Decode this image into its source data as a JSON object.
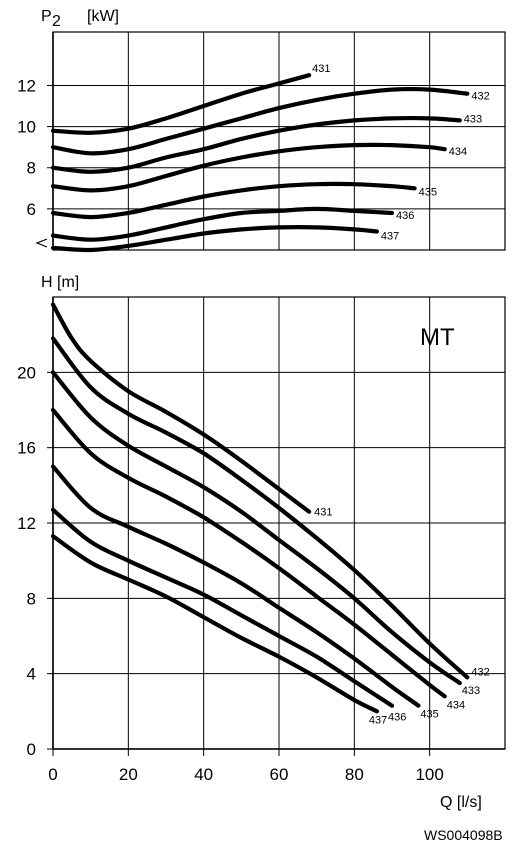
{
  "figure_code": "WS004098B",
  "x_axis": {
    "label": "Q [l/s]",
    "tick_labels": [
      "0",
      "20",
      "40",
      "60",
      "80",
      "100"
    ]
  },
  "chart_data": [
    {
      "type": "line",
      "title": "",
      "ylabel_prefix": "P",
      "ylabel_sub": "2",
      "ylabel_unit": "[kW]",
      "xlabel": "Q [l/s]",
      "xlim": [
        0,
        120
      ],
      "ylim": [
        4,
        14.6
      ],
      "y_tick_labels": [
        "6",
        "8",
        "10",
        "12"
      ],
      "grid": true,
      "series": [
        {
          "name": "431",
          "x": [
            0,
            10,
            20,
            30,
            40,
            50,
            60,
            68
          ],
          "y": [
            9.8,
            9.7,
            9.9,
            10.4,
            11.0,
            11.6,
            12.1,
            12.5
          ]
        },
        {
          "name": "432",
          "x": [
            0,
            10,
            20,
            30,
            40,
            50,
            60,
            70,
            80,
            90,
            100,
            110
          ],
          "y": [
            9.0,
            8.7,
            8.9,
            9.4,
            9.9,
            10.4,
            10.9,
            11.3,
            11.6,
            11.8,
            11.8,
            11.6
          ]
        },
        {
          "name": "433",
          "x": [
            0,
            10,
            20,
            30,
            40,
            50,
            60,
            70,
            80,
            90,
            100,
            108
          ],
          "y": [
            8.0,
            7.8,
            8.0,
            8.5,
            8.9,
            9.4,
            9.8,
            10.1,
            10.3,
            10.4,
            10.4,
            10.3
          ]
        },
        {
          "name": "434",
          "x": [
            0,
            10,
            20,
            30,
            40,
            50,
            60,
            70,
            80,
            90,
            100,
            104
          ],
          "y": [
            7.1,
            6.9,
            7.1,
            7.6,
            8.1,
            8.5,
            8.8,
            9.0,
            9.1,
            9.1,
            9.0,
            8.9
          ]
        },
        {
          "name": "435",
          "x": [
            0,
            10,
            20,
            30,
            40,
            50,
            60,
            70,
            80,
            90,
            96
          ],
          "y": [
            5.8,
            5.6,
            5.8,
            6.2,
            6.6,
            6.9,
            7.1,
            7.2,
            7.2,
            7.1,
            7.0
          ]
        },
        {
          "name": "436",
          "x": [
            0,
            10,
            20,
            30,
            40,
            50,
            60,
            70,
            80,
            90
          ],
          "y": [
            4.7,
            4.5,
            4.7,
            5.1,
            5.5,
            5.8,
            5.9,
            6.0,
            5.9,
            5.8
          ]
        },
        {
          "name": "437",
          "x": [
            0,
            10,
            20,
            30,
            40,
            50,
            60,
            70,
            80,
            86
          ],
          "y": [
            4.1,
            4.0,
            4.2,
            4.5,
            4.8,
            5.0,
            5.1,
            5.1,
            5.0,
            4.9
          ]
        }
      ]
    },
    {
      "type": "line",
      "title": "",
      "ylabel": "H [m]",
      "xlabel": "Q [l/s]",
      "xlim": [
        0,
        120
      ],
      "ylim": [
        0,
        24
      ],
      "y_tick_labels": [
        "0",
        "4",
        "8",
        "12",
        "16",
        "20"
      ],
      "grid": true,
      "annotation": "MT",
      "series": [
        {
          "name": "431",
          "x": [
            0,
            5,
            10,
            20,
            30,
            40,
            50,
            60,
            68
          ],
          "y": [
            23.6,
            21.8,
            20.6,
            19.0,
            17.9,
            16.7,
            15.3,
            13.8,
            12.6
          ]
        },
        {
          "name": "432",
          "x": [
            0,
            10,
            20,
            30,
            40,
            50,
            60,
            70,
            80,
            90,
            100,
            110
          ],
          "y": [
            21.8,
            19.2,
            17.8,
            16.8,
            15.7,
            14.3,
            12.8,
            11.2,
            9.5,
            7.6,
            5.6,
            3.8
          ]
        },
        {
          "name": "433",
          "x": [
            0,
            10,
            20,
            30,
            40,
            50,
            60,
            70,
            80,
            90,
            100,
            108
          ],
          "y": [
            20.0,
            17.6,
            16.1,
            15.0,
            13.9,
            12.6,
            11.1,
            9.6,
            8.0,
            6.2,
            4.6,
            3.5
          ]
        },
        {
          "name": "434",
          "x": [
            0,
            10,
            20,
            30,
            40,
            50,
            60,
            70,
            80,
            90,
            100,
            104
          ],
          "y": [
            18.0,
            15.7,
            14.4,
            13.4,
            12.3,
            11.0,
            9.6,
            8.1,
            6.6,
            5.0,
            3.4,
            2.8
          ]
        },
        {
          "name": "435",
          "x": [
            0,
            10,
            20,
            30,
            40,
            50,
            60,
            70,
            80,
            90,
            97
          ],
          "y": [
            15.0,
            12.8,
            11.8,
            10.9,
            9.9,
            8.8,
            7.5,
            6.2,
            4.8,
            3.3,
            2.3
          ]
        },
        {
          "name": "436",
          "x": [
            0,
            10,
            20,
            30,
            40,
            50,
            60,
            70,
            80,
            90
          ],
          "y": [
            12.7,
            11.0,
            10.0,
            9.1,
            8.2,
            7.1,
            6.0,
            4.9,
            3.6,
            2.3
          ]
        },
        {
          "name": "437",
          "x": [
            0,
            10,
            20,
            30,
            40,
            50,
            60,
            70,
            80,
            86
          ],
          "y": [
            11.3,
            9.9,
            9.0,
            8.1,
            7.0,
            5.9,
            4.9,
            3.8,
            2.6,
            2.0
          ]
        }
      ]
    }
  ]
}
